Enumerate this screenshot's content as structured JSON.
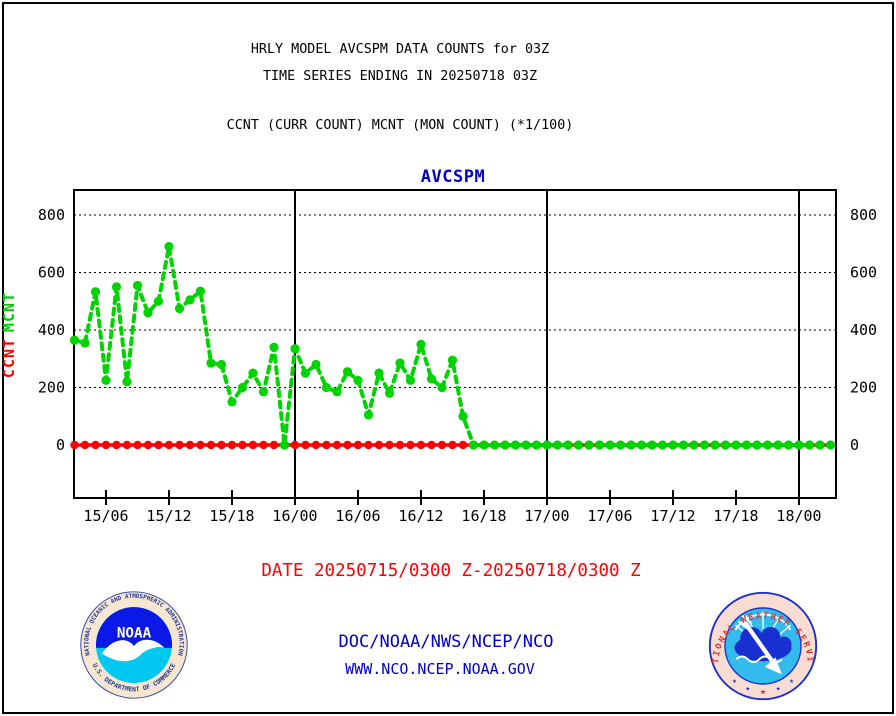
{
  "header": {
    "title_line1": "HRLY MODEL AVCSPM DATA COUNTS for 03Z",
    "title_line2": "TIME SERIES ENDING IN 20250718 03Z",
    "subtitle": "CCNT (CURR COUNT) MCNT (MON COUNT) (*1/100)"
  },
  "chart_data": {
    "type": "line",
    "title": "AVCSPM",
    "title_color": "#0000cc",
    "x_start": "20250715/0300Z",
    "x_end": "20250718/0300Z",
    "x_step_hours": 1,
    "n_points": 73,
    "grid": "horizontal-dotted",
    "ylim": [
      0,
      800
    ],
    "y_ticks": [
      0,
      200,
      400,
      600,
      800
    ],
    "y_axis_labels": [
      {
        "text": "CCNT",
        "color": "#ff0000"
      },
      {
        "text": "MCNT",
        "color": "#00c800"
      }
    ],
    "x_ticks": [
      {
        "label": "15/06",
        "hour": 3
      },
      {
        "label": "15/12",
        "hour": 9
      },
      {
        "label": "15/18",
        "hour": 15
      },
      {
        "label": "16/00",
        "hour": 21
      },
      {
        "label": "16/06",
        "hour": 27
      },
      {
        "label": "16/12",
        "hour": 33
      },
      {
        "label": "16/18",
        "hour": 39
      },
      {
        "label": "17/00",
        "hour": 45
      },
      {
        "label": "17/06",
        "hour": 51
      },
      {
        "label": "17/12",
        "hour": 57
      },
      {
        "label": "17/18",
        "hour": 63
      },
      {
        "label": "18/00",
        "hour": 69
      }
    ],
    "day_line_hours": [
      21,
      45,
      69
    ],
    "series": [
      {
        "name": "CCNT",
        "color": "#ff0000",
        "line": "solid",
        "marker": "circle",
        "values": [
          0,
          0,
          0,
          0,
          0,
          0,
          0,
          0,
          0,
          0,
          0,
          0,
          0,
          0,
          0,
          0,
          0,
          0,
          0,
          0,
          0,
          0,
          0,
          0,
          0,
          0,
          0,
          0,
          0,
          0,
          0,
          0,
          0,
          0,
          0,
          0,
          0,
          0,
          0,
          0,
          0,
          0,
          0,
          0,
          0,
          0,
          0,
          0,
          0,
          0,
          0,
          0,
          0,
          0,
          0,
          0,
          0,
          0,
          0,
          0,
          0,
          0,
          0,
          0,
          0,
          0,
          0,
          0,
          0,
          0,
          0,
          0,
          0
        ]
      },
      {
        "name": "MCNT",
        "color": "#00d400",
        "line": "dashed",
        "marker": "circle",
        "values": [
          365,
          355,
          533,
          225,
          550,
          220,
          555,
          460,
          500,
          690,
          475,
          505,
          535,
          285,
          280,
          150,
          200,
          250,
          185,
          340,
          0,
          335,
          250,
          280,
          200,
          185,
          255,
          225,
          105,
          250,
          180,
          285,
          225,
          350,
          230,
          200,
          295,
          100,
          0,
          0,
          0,
          0,
          0,
          0,
          0,
          0,
          0,
          0,
          0,
          0,
          0,
          0,
          0,
          0,
          0,
          0,
          0,
          0,
          0,
          0,
          0,
          0,
          0,
          0,
          0,
          0,
          0,
          0,
          0,
          0,
          0,
          0,
          0
        ]
      }
    ]
  },
  "footer": {
    "date_label": "DATE 20250715/0300 Z-20250718/0300 Z",
    "date_color": "#ff0000",
    "org_line1": "DOC/NOAA/NWS/NCEP/NCO",
    "org_line2": "WWW.NCO.NCEP.NOAA.GOV",
    "link_color": "#0000cc"
  },
  "logos": {
    "noaa": {
      "ring_text_top": "NATIONAL OCEANIC AND ATMOSPHERIC ADMINISTRATION",
      "ring_text_bottom": "U.S. DEPARTMENT OF COMMERCE",
      "center_text": "NOAA",
      "colors": {
        "ring": "#f8e7d0",
        "text": "#223a99",
        "top": "#0a18e8",
        "bottom": "#00c8f0"
      }
    },
    "nws": {
      "ring_text": "NATIONAL WEATHER SERVICE",
      "colors": {
        "ring": "#f9ddd2",
        "text": "#dd3333",
        "sky": "#33bbee",
        "cloud": "#1a2fd0"
      }
    }
  }
}
